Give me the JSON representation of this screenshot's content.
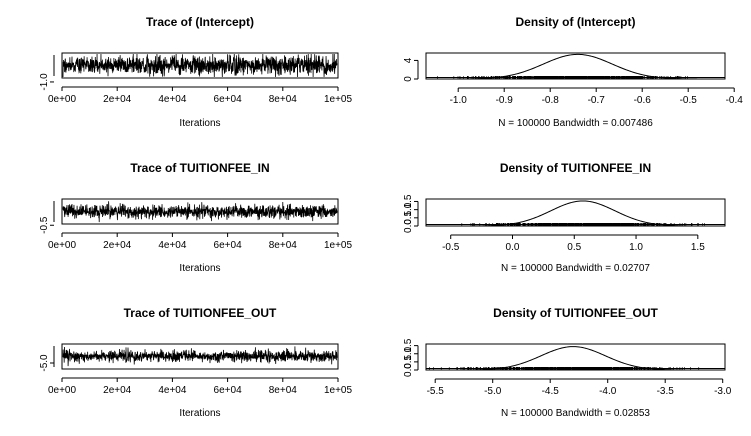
{
  "chart_data": [
    {
      "type": "line",
      "title": "Trace of (Intercept)",
      "xlabel": "Iterations",
      "ylabel": "",
      "xlim": [
        0,
        100000
      ],
      "ylim": [
        -0.94,
        -0.56
      ],
      "xticks": [
        "0e+00",
        "2e+04",
        "4e+04",
        "6e+04",
        "8e+04",
        "1e+05"
      ],
      "yticks": [
        "-1.0"
      ],
      "series": [
        {
          "mean": -0.747,
          "sd": 0.072,
          "n": 100000
        }
      ]
    },
    {
      "type": "area",
      "title": "Density of (Intercept)",
      "xlabel": "N = 100000   Bandwidth = 0.007486",
      "xlim": [
        -1.07,
        -0.42
      ],
      "ylim": [
        0,
        5.6
      ],
      "xticks": [
        "-1.0",
        "-0.9",
        "-0.8",
        "-0.7",
        "-0.6",
        "-0.5",
        "-0.4"
      ],
      "yticks": [
        "0",
        "4"
      ],
      "series": [
        {
          "mean": -0.74,
          "sd": 0.075,
          "peak": 5.3
        }
      ]
    },
    {
      "type": "line",
      "title": "Trace of TUITIONFEE_IN",
      "xlabel": "Iterations",
      "ylabel": "",
      "xlim": [
        0,
        100000
      ],
      "ylim": [
        -0.4,
        1.6
      ],
      "xticks": [
        "0e+00",
        "2e+04",
        "4e+04",
        "6e+04",
        "8e+04",
        "1e+05"
      ],
      "yticks": [
        "-0.5"
      ],
      "series": [
        {
          "mean": 0.58,
          "sd": 0.26,
          "n": 100000
        }
      ]
    },
    {
      "type": "area",
      "title": "Density of TUITIONFEE_IN",
      "xlabel": "N = 100000   Bandwidth = 0.02707",
      "xlim": [
        -0.7,
        1.72
      ],
      "ylim": [
        0,
        1.65
      ],
      "xticks": [
        "-0.5",
        "0.0",
        "0.5",
        "1.0",
        "1.5"
      ],
      "yticks": [
        "0.0",
        "0.5",
        "1.0",
        "1.5"
      ],
      "series": [
        {
          "mean": 0.57,
          "sd": 0.26,
          "peak": 1.53
        }
      ]
    },
    {
      "type": "line",
      "title": "Trace of TUITIONFEE_OUT",
      "xlabel": "Iterations",
      "ylabel": "",
      "xlim": [
        0,
        100000
      ],
      "ylim": [
        -5.6,
        -3.1
      ],
      "xticks": [
        "0e+00",
        "2e+04",
        "4e+04",
        "6e+04",
        "8e+04",
        "1e+05"
      ],
      "yticks": [
        "-5.0"
      ],
      "series": [
        {
          "mean": -4.3,
          "sd": 0.28,
          "n": 100000
        }
      ]
    },
    {
      "type": "area",
      "title": "Density of TUITIONFEE_OUT",
      "xlabel": "N = 100000   Bandwidth = 0.02853",
      "xlim": [
        -5.58,
        -2.98
      ],
      "ylim": [
        0,
        1.6
      ],
      "xticks": [
        "-5.5",
        "-5.0",
        "-4.5",
        "-4.0",
        "-3.5",
        "-3.0"
      ],
      "yticks": [
        "0.0",
        "0.5",
        "1.0",
        "1.5"
      ],
      "series": [
        {
          "mean": -4.3,
          "sd": 0.28,
          "peak": 1.44
        }
      ]
    }
  ]
}
